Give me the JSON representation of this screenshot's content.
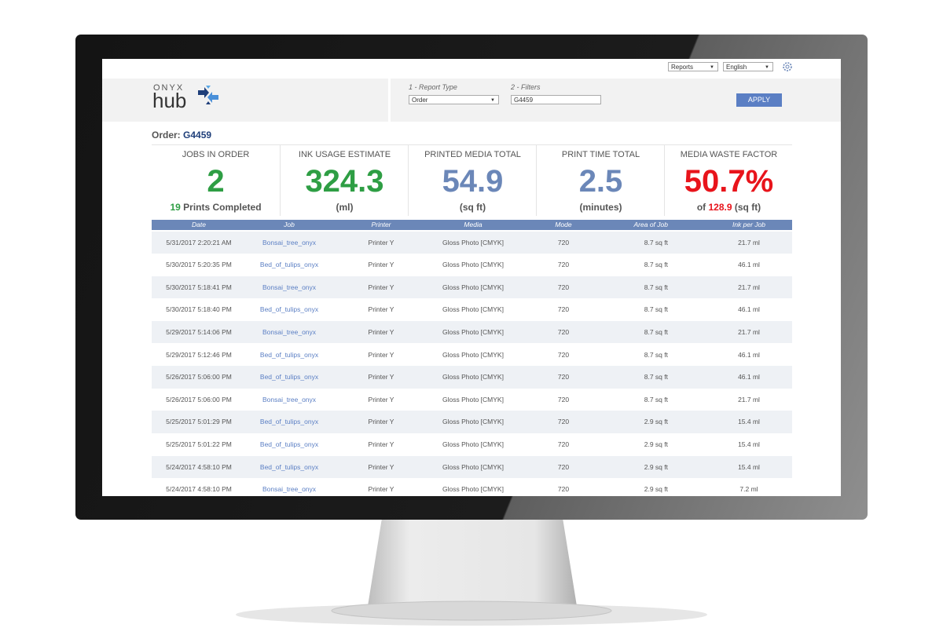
{
  "toolbar": {
    "report_menu": "Reports",
    "language": "English"
  },
  "logo": {
    "brand": "ONYX",
    "product": "hub"
  },
  "filters": {
    "report_type_label": "1 - Report Type",
    "report_type": "Order",
    "filters_label": "2 - Filters",
    "filter_value": "G4459",
    "apply": "APPLY"
  },
  "order": {
    "label": "Order:",
    "id": "G4459"
  },
  "stats": [
    {
      "label": "JOBS IN ORDER",
      "value": "2",
      "color": "#2e9e44",
      "sub": [
        {
          "text": "19",
          "color": "#2e9e44"
        },
        {
          "text": "Prints Completed"
        }
      ]
    },
    {
      "label": "INK USAGE ESTIMATE",
      "value": "324.3",
      "color": "#2e9e44",
      "sub": [
        {
          "text": "(ml)"
        }
      ]
    },
    {
      "label": "PRINTED MEDIA TOTAL",
      "value": "54.9",
      "color": "#6b87b8",
      "sub": [
        {
          "text": "(sq ft)"
        }
      ]
    },
    {
      "label": "PRINT TIME TOTAL",
      "value": "2.5",
      "color": "#6b87b8",
      "sub": [
        {
          "text": "(minutes)"
        }
      ]
    },
    {
      "label": "MEDIA WASTE FACTOR",
      "value": "50.7%",
      "color": "#e8141b",
      "sub": [
        {
          "text": "of"
        },
        {
          "text": "128.9",
          "color": "#e8141b"
        },
        {
          "text": "(sq ft)"
        }
      ]
    }
  ],
  "table": {
    "columns": [
      "Date",
      "Job",
      "Printer",
      "Media",
      "Mode",
      "Area of Job",
      "Ink per Job"
    ],
    "rows": [
      [
        "5/31/2017 2:20:21 AM",
        "Bonsai_tree_onyx",
        "Printer Y",
        "Gloss Photo [CMYK]",
        "720",
        "8.7 sq ft",
        "21.7 ml"
      ],
      [
        "5/30/2017 5:20:35 PM",
        "Bed_of_tulips_onyx",
        "Printer Y",
        "Gloss Photo [CMYK]",
        "720",
        "8.7 sq ft",
        "46.1 ml"
      ],
      [
        "5/30/2017 5:18:41 PM",
        "Bonsai_tree_onyx",
        "Printer Y",
        "Gloss Photo [CMYK]",
        "720",
        "8.7 sq ft",
        "21.7 ml"
      ],
      [
        "5/30/2017 5:18:40 PM",
        "Bed_of_tulips_onyx",
        "Printer Y",
        "Gloss Photo [CMYK]",
        "720",
        "8.7 sq ft",
        "46.1 ml"
      ],
      [
        "5/29/2017 5:14:06 PM",
        "Bonsai_tree_onyx",
        "Printer Y",
        "Gloss Photo [CMYK]",
        "720",
        "8.7 sq ft",
        "21.7 ml"
      ],
      [
        "5/29/2017 5:12:46 PM",
        "Bed_of_tulips_onyx",
        "Printer Y",
        "Gloss Photo [CMYK]",
        "720",
        "8.7 sq ft",
        "46.1 ml"
      ],
      [
        "5/26/2017 5:06:00 PM",
        "Bed_of_tulips_onyx",
        "Printer Y",
        "Gloss Photo [CMYK]",
        "720",
        "8.7 sq ft",
        "46.1 ml"
      ],
      [
        "5/26/2017 5:06:00 PM",
        "Bonsai_tree_onyx",
        "Printer Y",
        "Gloss Photo [CMYK]",
        "720",
        "8.7 sq ft",
        "21.7 ml"
      ],
      [
        "5/25/2017 5:01:29 PM",
        "Bed_of_tulips_onyx",
        "Printer Y",
        "Gloss Photo [CMYK]",
        "720",
        "2.9 sq ft",
        "15.4 ml"
      ],
      [
        "5/25/2017 5:01:22 PM",
        "Bed_of_tulips_onyx",
        "Printer Y",
        "Gloss Photo [CMYK]",
        "720",
        "2.9 sq ft",
        "15.4 ml"
      ],
      [
        "5/24/2017 4:58:10 PM",
        "Bed_of_tulips_onyx",
        "Printer Y",
        "Gloss Photo [CMYK]",
        "720",
        "2.9 sq ft",
        "15.4 ml"
      ],
      [
        "5/24/2017 4:58:10 PM",
        "Bonsai_tree_onyx",
        "Printer Y",
        "Gloss Photo [CMYK]",
        "720",
        "2.9 sq ft",
        "7.2 ml"
      ]
    ]
  }
}
